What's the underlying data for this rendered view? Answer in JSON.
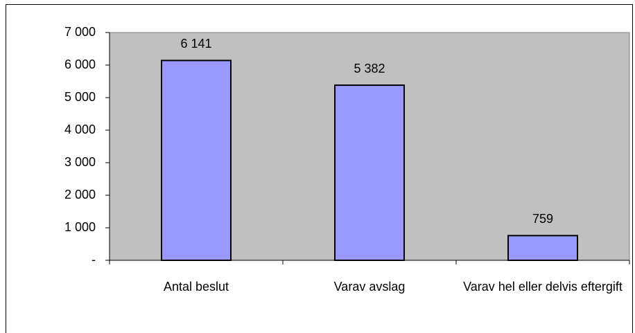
{
  "chart_data": {
    "type": "bar",
    "categories": [
      "Antal beslut",
      "Varav avslag",
      "Varav hel eller delvis eftergift"
    ],
    "values": [
      6141,
      5382,
      759
    ],
    "value_labels": [
      "6 141",
      "5 382",
      "759"
    ],
    "color": "#9999ff",
    "plot_background": "#c0c0c0",
    "ylim": [
      0,
      7000
    ],
    "yticks": [
      {
        "value": 0,
        "label": "-"
      },
      {
        "value": 1000,
        "label": "1 000"
      },
      {
        "value": 2000,
        "label": "2 000"
      },
      {
        "value": 3000,
        "label": "3 000"
      },
      {
        "value": 4000,
        "label": "4 000"
      },
      {
        "value": 5000,
        "label": "5 000"
      },
      {
        "value": 6000,
        "label": "6 000"
      },
      {
        "value": 7000,
        "label": "7 000"
      }
    ],
    "grid": false
  }
}
